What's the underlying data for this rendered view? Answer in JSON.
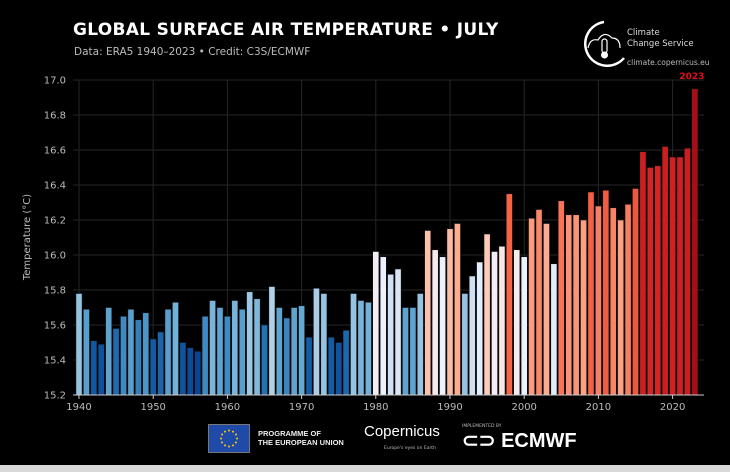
{
  "header": {
    "title": "GLOBAL SURFACE AIR TEMPERATURE • JULY",
    "subtitle": "Data: ERA5 1940–2023 • Credit: C3S/ECMWF"
  },
  "logo": {
    "name_line1": "Climate",
    "name_line2": "Change Service",
    "url": "climate.copernicus.eu"
  },
  "footer": {
    "eu_line1": "PROGRAMME OF",
    "eu_line2": "THE EUROPEAN UNION",
    "copernicus": "Copernicus",
    "copernicus_tagline": "Europe's eyes on Earth",
    "implemented_by": "IMPLEMENTED BY",
    "ecmwf": "ECMWF"
  },
  "chart_data": {
    "type": "bar",
    "title": "GLOBAL SURFACE AIR TEMPERATURE • JULY",
    "ylabel": "Temperature (°C)",
    "xlabel": "",
    "ylim": [
      15.2,
      17.0
    ],
    "yticks": [
      "15.2",
      "15.4",
      "15.6",
      "15.8",
      "16.0",
      "16.2",
      "16.4",
      "16.6",
      "16.8",
      "17.0"
    ],
    "xticks": [
      "1940",
      "1950",
      "1960",
      "1970",
      "1980",
      "1990",
      "2000",
      "2010",
      "2020"
    ],
    "grid": true,
    "highlight_label": "2023",
    "highlight_color": "#e3101a",
    "colormap": "blue-to-red diverging by temperature",
    "x": [
      1940,
      1941,
      1942,
      1943,
      1944,
      1945,
      1946,
      1947,
      1948,
      1949,
      1950,
      1951,
      1952,
      1953,
      1954,
      1955,
      1956,
      1957,
      1958,
      1959,
      1960,
      1961,
      1962,
      1963,
      1964,
      1965,
      1966,
      1967,
      1968,
      1969,
      1970,
      1971,
      1972,
      1973,
      1974,
      1975,
      1976,
      1977,
      1978,
      1979,
      1980,
      1981,
      1982,
      1983,
      1984,
      1985,
      1986,
      1987,
      1988,
      1989,
      1990,
      1991,
      1992,
      1993,
      1994,
      1995,
      1996,
      1997,
      1998,
      1999,
      2000,
      2001,
      2002,
      2003,
      2004,
      2005,
      2006,
      2007,
      2008,
      2009,
      2010,
      2011,
      2012,
      2013,
      2014,
      2015,
      2016,
      2017,
      2018,
      2019,
      2020,
      2021,
      2022,
      2023
    ],
    "values": [
      15.78,
      15.69,
      15.51,
      15.49,
      15.7,
      15.58,
      15.65,
      15.69,
      15.63,
      15.67,
      15.52,
      15.56,
      15.69,
      15.73,
      15.5,
      15.47,
      15.45,
      15.65,
      15.74,
      15.7,
      15.65,
      15.74,
      15.69,
      15.79,
      15.75,
      15.6,
      15.82,
      15.7,
      15.64,
      15.7,
      15.71,
      15.53,
      15.81,
      15.78,
      15.53,
      15.5,
      15.57,
      15.78,
      15.74,
      15.73,
      16.02,
      15.99,
      15.89,
      15.92,
      15.7,
      15.7,
      15.78,
      16.14,
      16.03,
      15.99,
      16.15,
      16.18,
      15.78,
      15.88,
      15.96,
      16.12,
      16.02,
      16.05,
      16.35,
      16.03,
      15.99,
      16.21,
      16.26,
      16.18,
      15.95,
      16.31,
      16.23,
      16.23,
      16.2,
      16.36,
      16.28,
      16.37,
      16.27,
      16.2,
      16.29,
      16.38,
      16.59,
      16.5,
      16.51,
      16.62,
      16.56,
      16.56,
      16.61,
      16.95
    ]
  }
}
